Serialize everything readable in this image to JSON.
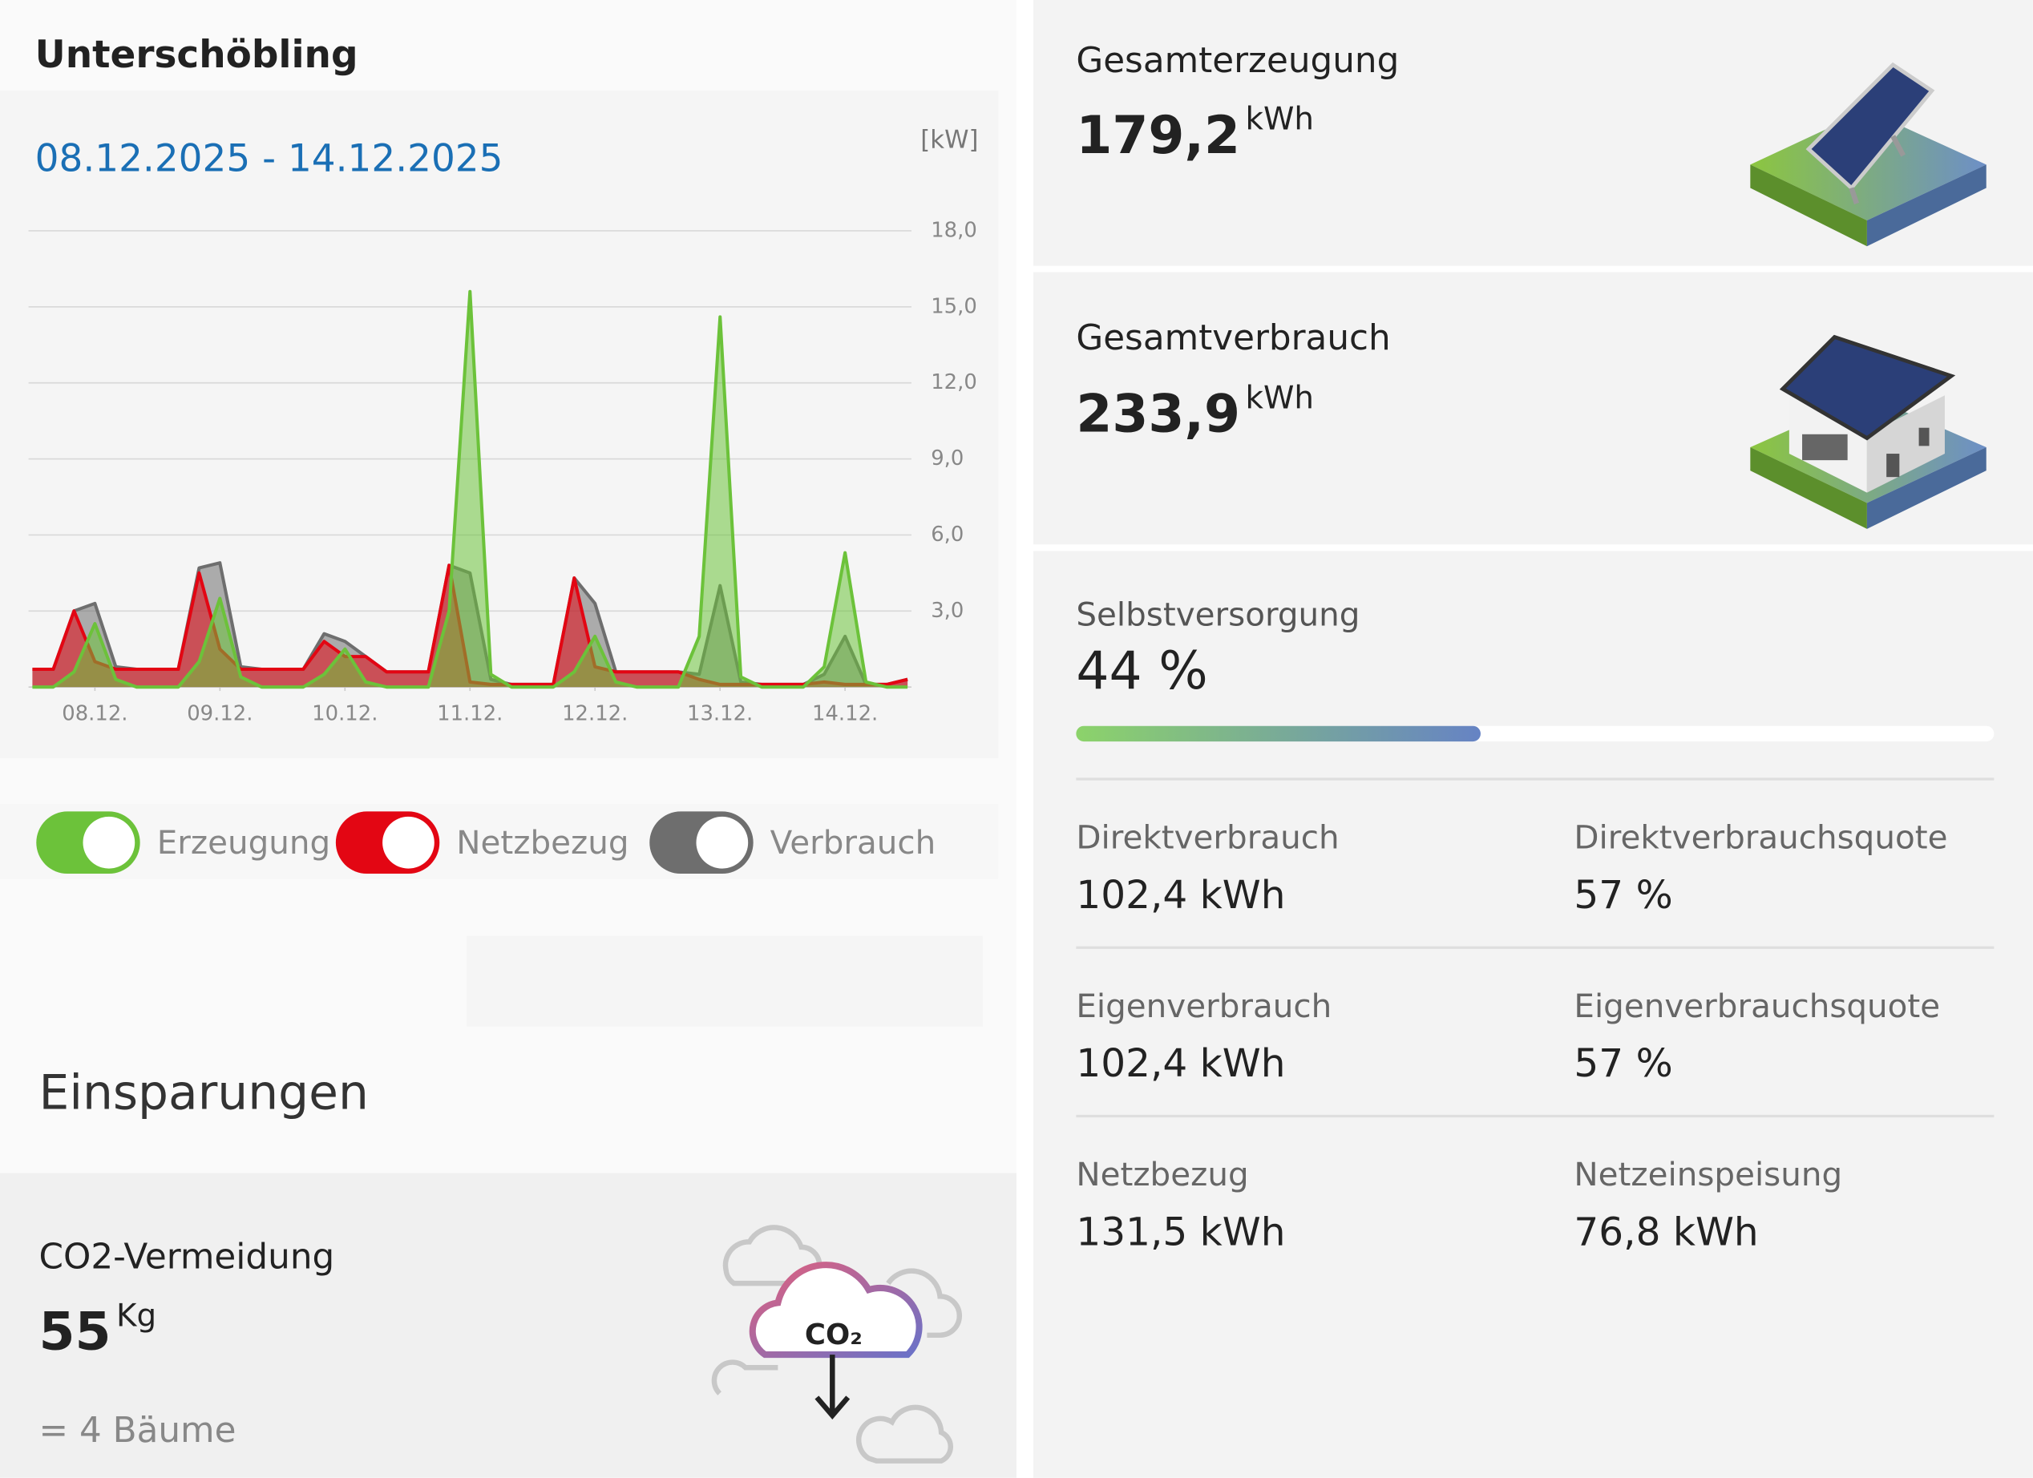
{
  "title": "Unterschöbling",
  "chart": {
    "type": "area",
    "date_range": "08.12.2025 - 14.12.2025",
    "unit": "[kW]",
    "x": [
      0,
      4,
      8,
      12,
      16,
      20,
      24,
      28,
      32,
      36,
      40,
      44,
      48,
      52,
      56,
      60,
      64,
      68,
      72,
      76,
      80,
      84,
      88,
      92,
      96,
      100,
      104,
      108,
      112,
      116,
      120,
      124,
      128,
      132,
      136,
      140,
      144,
      148,
      152,
      156,
      160,
      164,
      168
    ],
    "xlim": [
      0,
      168
    ],
    "xticks": [
      {
        "value": 12,
        "label": "08.12."
      },
      {
        "value": 36,
        "label": "09.12."
      },
      {
        "value": 60,
        "label": "10.12."
      },
      {
        "value": 84,
        "label": "11.12."
      },
      {
        "value": 108,
        "label": "12.12."
      },
      {
        "value": 132,
        "label": "13.12."
      },
      {
        "value": 156,
        "label": "14.12."
      }
    ],
    "ylim": [
      0,
      18
    ],
    "yticks": [
      {
        "value": 3,
        "label": "3,0"
      },
      {
        "value": 6,
        "label": "6,0"
      },
      {
        "value": 9,
        "label": "9,0"
      },
      {
        "value": 12,
        "label": "12,0"
      },
      {
        "value": 15,
        "label": "15,0"
      },
      {
        "value": 18,
        "label": "18,0"
      }
    ],
    "grid": true,
    "series": [
      {
        "name": "Verbrauch",
        "color": "#6e6e6e",
        "values": [
          0.7,
          0.7,
          3.0,
          3.3,
          0.8,
          0.7,
          0.7,
          0.7,
          4.7,
          4.9,
          0.8,
          0.7,
          0.7,
          0.7,
          2.1,
          1.8,
          1.2,
          0.6,
          0.6,
          0.6,
          4.8,
          4.5,
          0.3,
          0.1,
          0.1,
          0.1,
          4.3,
          3.3,
          0.6,
          0.6,
          0.6,
          0.6,
          0.5,
          4.0,
          0.2,
          0.1,
          0.1,
          0.1,
          0.5,
          2.0,
          0.1,
          0.1,
          0.3
        ]
      },
      {
        "name": "Netzbezug",
        "color": "#e30613",
        "values": [
          0.7,
          0.7,
          3.0,
          1.0,
          0.7,
          0.7,
          0.7,
          0.7,
          4.5,
          1.5,
          0.7,
          0.7,
          0.7,
          0.7,
          1.8,
          1.2,
          1.2,
          0.6,
          0.6,
          0.6,
          4.8,
          0.2,
          0.1,
          0.1,
          0.1,
          0.1,
          4.3,
          0.8,
          0.6,
          0.6,
          0.6,
          0.6,
          0.3,
          0.1,
          0.1,
          0.1,
          0.1,
          0.1,
          0.2,
          0.1,
          0.1,
          0.1,
          0.3
        ]
      },
      {
        "name": "Erzeugung",
        "color": "#6cc23a",
        "values": [
          0,
          0,
          0.6,
          2.5,
          0.3,
          0,
          0,
          0,
          1.0,
          3.5,
          0.4,
          0,
          0,
          0,
          0.5,
          1.5,
          0.2,
          0,
          0,
          0,
          3.0,
          15.6,
          0.5,
          0,
          0,
          0,
          0.6,
          2.0,
          0.2,
          0,
          0,
          0,
          2.0,
          14.6,
          0.4,
          0,
          0,
          0,
          0.8,
          5.3,
          0.2,
          0,
          0
        ]
      }
    ]
  },
  "savings": {
    "title": "Einsparungen",
    "label": "CO2-Vermeidung",
    "value": "55",
    "unit": "Kg",
    "note": "= 4 Bäume",
    "icon_text": "CO₂"
  },
  "summary": {
    "generation": {
      "label": "Gesamterzeugung",
      "value": "179,2",
      "unit": "kWh"
    },
    "consumption": {
      "label": "Gesamtverbrauch",
      "value": "233,9",
      "unit": "kWh"
    },
    "self_supply": {
      "label": "Selbstversorgung",
      "value": 44,
      "value_label": "44 %",
      "max": 100
    },
    "stats": [
      [
        {
          "label": "Direktverbrauch",
          "value": "102,4 kWh"
        },
        {
          "label": "Direktverbrauchsquote",
          "value": "57 %"
        }
      ],
      [
        {
          "label": "Eigenverbrauch",
          "value": "102,4 kWh"
        },
        {
          "label": "Eigenverbrauchsquote",
          "value": "57 %"
        }
      ],
      [
        {
          "label": "Netzbezug",
          "value": "131,5 kWh"
        },
        {
          "label": "Netzeinspeisung",
          "value": "76,8 kWh"
        }
      ]
    ]
  }
}
